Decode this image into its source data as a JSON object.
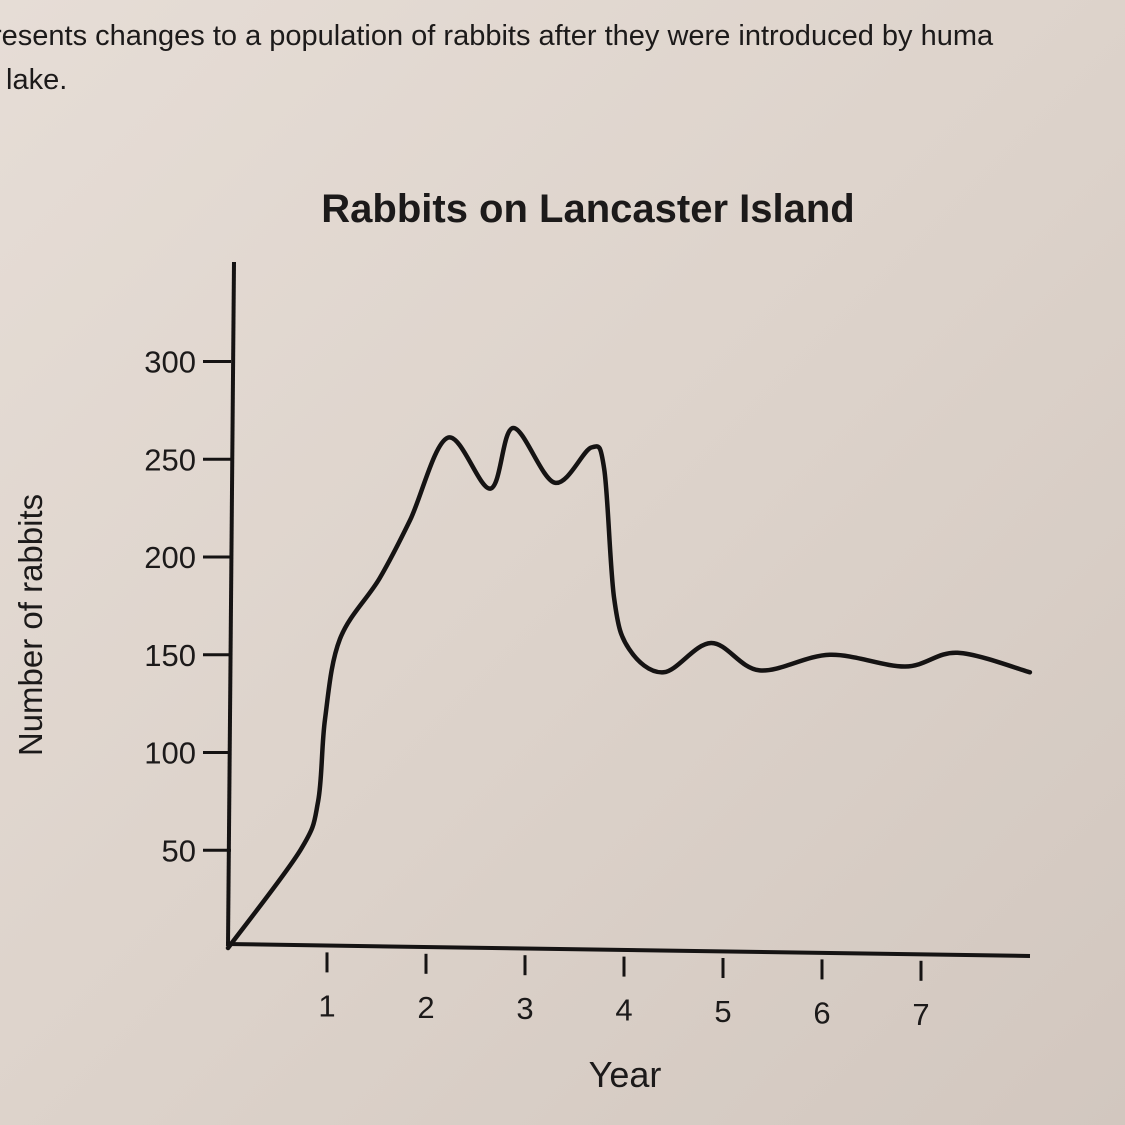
{
  "intro_text": [
    "resents changes to a population of rabbits after they were introduced by huma",
    "lake."
  ],
  "chart_data": {
    "type": "line",
    "title": "Rabbits on Lancaster Island",
    "xlabel": "Year",
    "ylabel": "Number of rabbits",
    "xlim": [
      0,
      8.1
    ],
    "ylim": [
      0,
      330
    ],
    "x_ticks": [
      "1",
      "2",
      "3",
      "4",
      "5",
      "6",
      "7"
    ],
    "y_ticks": [
      "50",
      "100",
      "150",
      "200",
      "250",
      "300"
    ],
    "grid": false,
    "line_color": "#151313",
    "series": [
      {
        "name": "Rabbits",
        "x": [
          0,
          0.73,
          0.91,
          0.98,
          1.13,
          1.53,
          1.84,
          2.22,
          2.65,
          2.88,
          3.3,
          3.67,
          3.8,
          3.9,
          4.05,
          4.4,
          4.88,
          5.37,
          6.08,
          6.84,
          7.37,
          8.1
        ],
        "y": [
          0,
          50,
          75,
          117,
          158,
          189,
          219,
          261,
          235,
          266,
          238,
          256,
          245,
          179,
          153,
          141,
          156,
          142,
          150,
          144,
          151,
          141
        ]
      }
    ]
  }
}
